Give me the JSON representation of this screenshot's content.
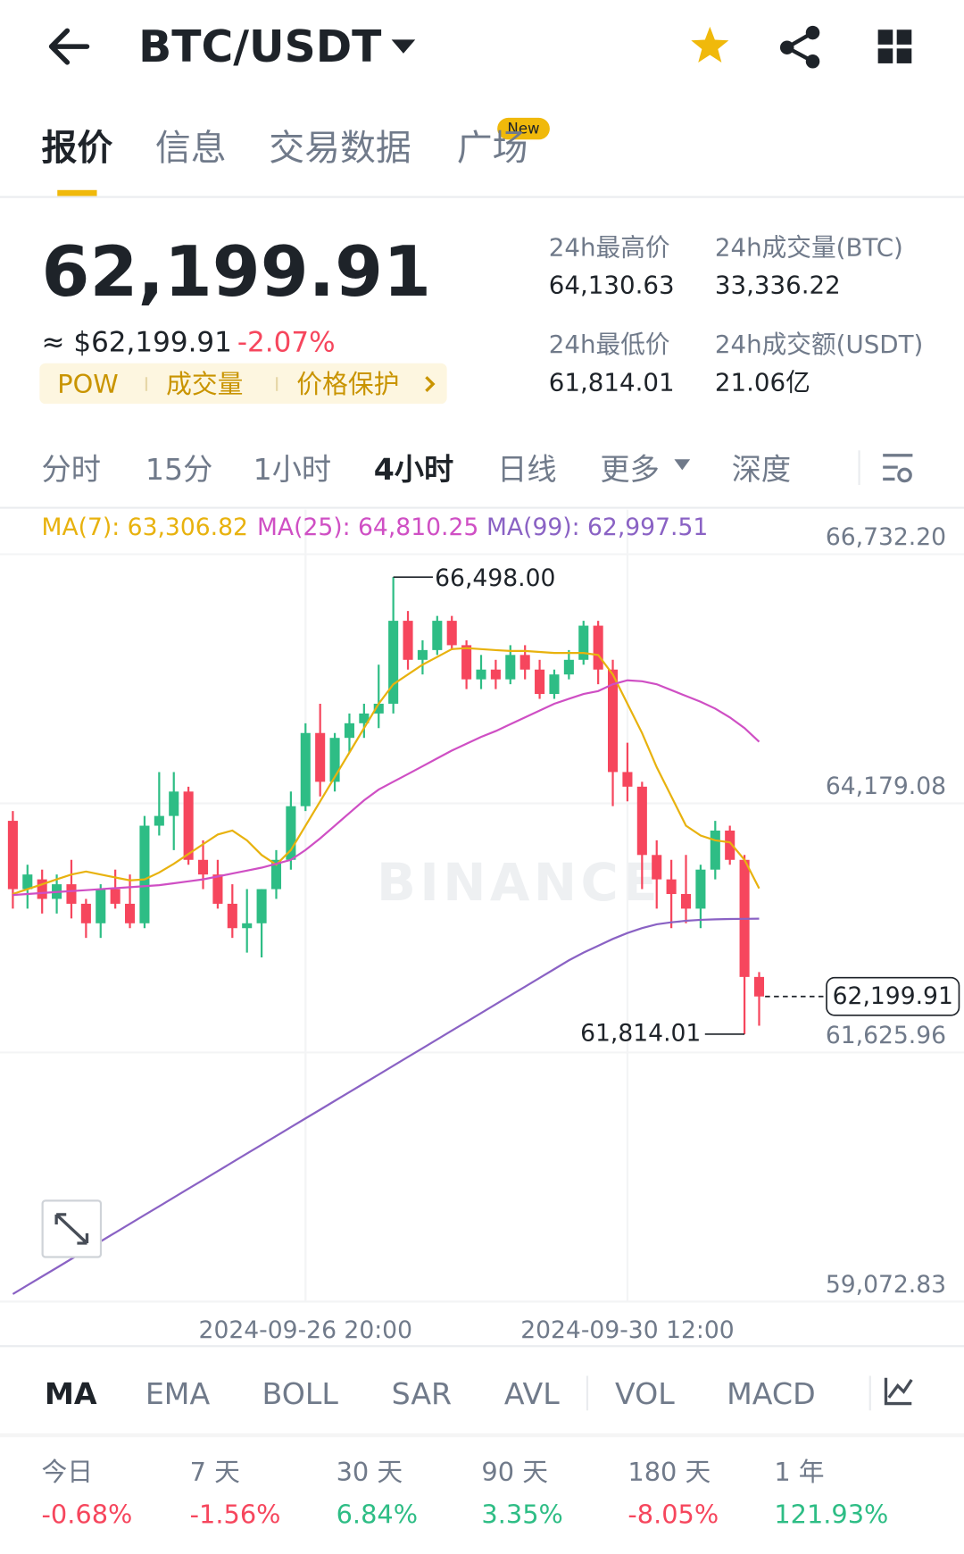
{
  "header": {
    "pair": "BTC/USDT"
  },
  "tabs": [
    "报价",
    "信息",
    "交易数据",
    "广场"
  ],
  "active_tab": 0,
  "new_badge": "New",
  "price": {
    "last": "62,199.91",
    "fiat": "≈ $62,199.91",
    "change": "-2.07%"
  },
  "tags": [
    "POW",
    "成交量",
    "价格保护"
  ],
  "stats": [
    {
      "label": "24h最高价",
      "value": "64,130.63"
    },
    {
      "label": "24h成交量(BTC)",
      "value": "33,336.22"
    },
    {
      "label": "24h最低价",
      "value": "61,814.01"
    },
    {
      "label": "24h成交额(USDT)",
      "value": "21.06亿"
    }
  ],
  "intervals": [
    "分时",
    "15分",
    "1小时",
    "4小时",
    "日线",
    "更多",
    "深度"
  ],
  "active_interval": 3,
  "chart_data": {
    "type": "candlestick",
    "up_color": "#2ebd85",
    "down_color": "#f6465d",
    "grid": true,
    "watermark": "BINANCE",
    "open": [
      64000,
      63300,
      63400,
      63200,
      63350,
      63150,
      62950,
      63300,
      63150,
      62950,
      63950,
      64050,
      64300,
      63600,
      63450,
      63150,
      62900,
      62950,
      63300,
      63600,
      64150,
      64900,
      64400,
      64850,
      65000,
      65100,
      65200,
      66050,
      65650,
      65750,
      66050,
      65800,
      65450,
      65550,
      65450,
      65700,
      65550,
      65300,
      65500,
      65650,
      66000,
      65550,
      64500,
      64350,
      63650,
      63400,
      63250,
      63100,
      63500,
      63900,
      63600,
      62400
    ],
    "high": [
      64100,
      63550,
      63500,
      63450,
      63600,
      63200,
      63350,
      63500,
      63450,
      64050,
      64500,
      64500,
      64350,
      63800,
      63600,
      63350,
      63300,
      63300,
      63700,
      64300,
      65000,
      65200,
      64900,
      65100,
      65200,
      65600,
      66498,
      66150,
      65850,
      66100,
      66100,
      65850,
      65700,
      65650,
      65800,
      65800,
      65650,
      65550,
      65750,
      66050,
      66050,
      65650,
      64800,
      64400,
      63800,
      63600,
      63650,
      63550,
      64000,
      63950,
      63650,
      62450
    ],
    "low": [
      63100,
      63100,
      63050,
      63050,
      63000,
      62800,
      62800,
      63100,
      62900,
      62900,
      63850,
      63700,
      63550,
      63300,
      63100,
      62800,
      62650,
      62600,
      63200,
      63500,
      64100,
      64250,
      64300,
      64700,
      64850,
      64950,
      65100,
      65550,
      65500,
      65700,
      65750,
      65350,
      65350,
      65350,
      65400,
      65450,
      65250,
      65250,
      65450,
      65600,
      65400,
      64150,
      64200,
      63300,
      63100,
      62900,
      62950,
      62900,
      63400,
      63550,
      61814.01,
      61900
    ],
    "close": [
      63300,
      63450,
      63200,
      63350,
      63150,
      62950,
      63300,
      63150,
      62950,
      63950,
      64050,
      64300,
      63600,
      63450,
      63150,
      62900,
      62950,
      63300,
      63600,
      64150,
      64900,
      64400,
      64850,
      65000,
      65100,
      65200,
      66050,
      65650,
      65750,
      66050,
      65800,
      65450,
      65550,
      65450,
      65700,
      65550,
      65300,
      65500,
      65650,
      66000,
      65550,
      64500,
      64350,
      63650,
      63400,
      63250,
      63100,
      63500,
      63900,
      63600,
      62400,
      62199.91
    ],
    "series": [
      {
        "name": "MA(7)",
        "legend": "MA(7): 63,306.82",
        "color": "#e8b20e",
        "values": [
          63250,
          63300,
          63350,
          63400,
          63450,
          63480,
          63450,
          63420,
          63390,
          63400,
          63470,
          63560,
          63660,
          63760,
          63860,
          63900,
          63800,
          63650,
          63550,
          63700,
          63950,
          64200,
          64450,
          64700,
          64950,
          65200,
          65400,
          65500,
          65600,
          65680,
          65760,
          65770,
          65760,
          65750,
          65740,
          65740,
          65730,
          65720,
          65720,
          65720,
          65700,
          65500,
          65200,
          64900,
          64550,
          64250,
          63950,
          63850,
          63800,
          63780,
          63600,
          63306.82
        ]
      },
      {
        "name": "MA(25)",
        "legend": "MA(25): 64,810.25",
        "color": "#cf4fc4",
        "values": [
          63240,
          63250,
          63260,
          63270,
          63280,
          63290,
          63300,
          63310,
          63320,
          63330,
          63340,
          63360,
          63380,
          63400,
          63430,
          63460,
          63490,
          63520,
          63560,
          63600,
          63700,
          63820,
          63950,
          64080,
          64210,
          64320,
          64400,
          64480,
          64560,
          64640,
          64720,
          64790,
          64860,
          64920,
          64990,
          65060,
          65130,
          65200,
          65250,
          65300,
          65330,
          65400,
          65440,
          65430,
          65400,
          65340,
          65280,
          65220,
          65150,
          65060,
          64950,
          64810.25
        ]
      },
      {
        "name": "MA(99)",
        "legend": "MA(99): 62,997.51",
        "color": "#8a62c4",
        "values": [
          59150,
          59240,
          59330,
          59420,
          59510,
          59600,
          59690,
          59780,
          59870,
          59960,
          60050,
          60140,
          60230,
          60320,
          60410,
          60500,
          60590,
          60680,
          60770,
          60860,
          60950,
          61040,
          61130,
          61220,
          61310,
          61400,
          61490,
          61580,
          61670,
          61760,
          61850,
          61940,
          62030,
          62120,
          62210,
          62300,
          62390,
          62480,
          62570,
          62650,
          62720,
          62790,
          62850,
          62900,
          62940,
          62960,
          62975,
          62985,
          62990,
          62993,
          62995,
          62997.51
        ]
      }
    ],
    "ylim": [
      59072.83,
      67188
    ],
    "yticks": [
      {
        "value": 66732.2,
        "label": "66,732.20"
      },
      {
        "value": 64179.08,
        "label": "64,179.08"
      },
      {
        "value": 61625.96,
        "label": "61,625.96"
      },
      {
        "value": 59072.83,
        "label": "59,072.83"
      }
    ],
    "xticks": [
      {
        "value": 20,
        "label": "2024-09-26 20:00"
      },
      {
        "value": 42,
        "label": "2024-09-30 12:00"
      }
    ],
    "high_label": {
      "value": 66498,
      "label": "66,498.00",
      "index": 26
    },
    "low_label": {
      "value": 61814.01,
      "label": "61,814.01",
      "index": 50
    },
    "last_price": {
      "value": 62199.91,
      "label": "62,199.91"
    }
  },
  "indicators": [
    "MA",
    "EMA",
    "BOLL",
    "SAR",
    "AVL",
    "VOL",
    "MACD"
  ],
  "active_indicator": 0,
  "performance": [
    {
      "label": "今日",
      "value": "-0.68%",
      "color": "#f6465d"
    },
    {
      "label": "7 天",
      "value": "-1.56%",
      "color": "#f6465d"
    },
    {
      "label": "30 天",
      "value": "6.84%",
      "color": "#2ebd85"
    },
    {
      "label": "90 天",
      "value": "3.35%",
      "color": "#2ebd85"
    },
    {
      "label": "180 天",
      "value": "-8.05%",
      "color": "#f6465d"
    },
    {
      "label": "1 年",
      "value": "121.93%",
      "color": "#2ebd85"
    }
  ]
}
